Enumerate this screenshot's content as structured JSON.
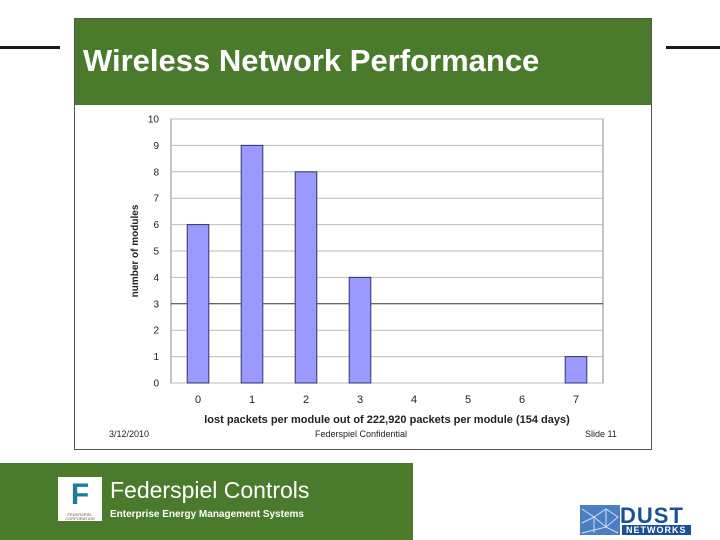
{
  "slide": {
    "title": "Wireless Network Performance",
    "date": "3/12/2010",
    "confidential": "Federspiel Confidential",
    "slide_number": "Slide 11"
  },
  "company": {
    "name": "Federspiel Controls",
    "tagline": "Enterprise Energy Management Systems",
    "logo_text": "FEDERSPIEL CORPORATION"
  },
  "partner": {
    "name": "DUST",
    "sub": "NETWORKS"
  },
  "colors": {
    "brand_green": "#4a7a2c",
    "bar_fill": "#9999ff",
    "bar_stroke": "#333366"
  },
  "chart_data": {
    "type": "bar",
    "categories": [
      "0",
      "1",
      "2",
      "3",
      "4",
      "5",
      "6",
      "7"
    ],
    "values": [
      6,
      9,
      8,
      4,
      0,
      0,
      0,
      1
    ],
    "xlabel": "lost packets per module out of 222,920 packets per module (154 days)",
    "ylabel": "number of modules",
    "ylim": [
      0,
      10
    ],
    "yticks": [
      "0",
      "1",
      "2",
      "3",
      "4",
      "5",
      "6",
      "7",
      "8",
      "9",
      "10"
    ],
    "grid": true,
    "legend": "none"
  }
}
